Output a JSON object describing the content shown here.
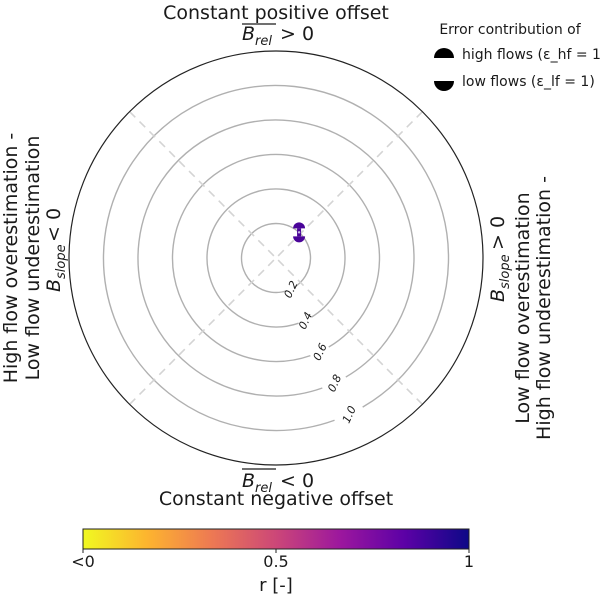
{
  "chart_data": {
    "type": "polar-diagnostic",
    "title_top": "Constant positive offset",
    "title_top_math": "B_rel > 0",
    "title_bottom": "Constant negative offset",
    "title_bottom_math": "B_rel < 0",
    "left_label_line1": "High flow overestimation -",
    "left_label_line2": "Low flow underestimation",
    "left_label_math": "B_slope < 0",
    "right_label_line1": "Low flow overestimation",
    "right_label_line2": "High flow underestimation -",
    "right_label_math": "B_slope > 0",
    "radial_ticks": [
      0.2,
      0.4,
      0.6,
      0.8,
      1.0
    ],
    "radial_tick_labels": [
      "0.2",
      "0.4",
      "0.6",
      "0.8",
      "1.0"
    ],
    "r_max": 1.2,
    "grid": true,
    "legend": {
      "placement": "top-right",
      "title": "Error contribution of",
      "items": [
        {
          "label": "high flows (ε_hf = 1)",
          "marker": "upper-half-circle"
        },
        {
          "label": "low flows (ε_lf = 1)",
          "marker": "lower-half-circle"
        }
      ]
    },
    "points": [
      {
        "theta_deg": 48,
        "r": 0.2,
        "r_value": 0.95,
        "color": "#4a0499"
      }
    ],
    "colorbar": {
      "label": "r [-]",
      "tick_labels": [
        "<0",
        "0.5",
        "1"
      ],
      "colormap": "plasma_r",
      "stops": [
        "#f0f921",
        "#fdb42f",
        "#ed7953",
        "#cc4778",
        "#9c179e",
        "#5c01a6",
        "#0d0887"
      ]
    }
  }
}
